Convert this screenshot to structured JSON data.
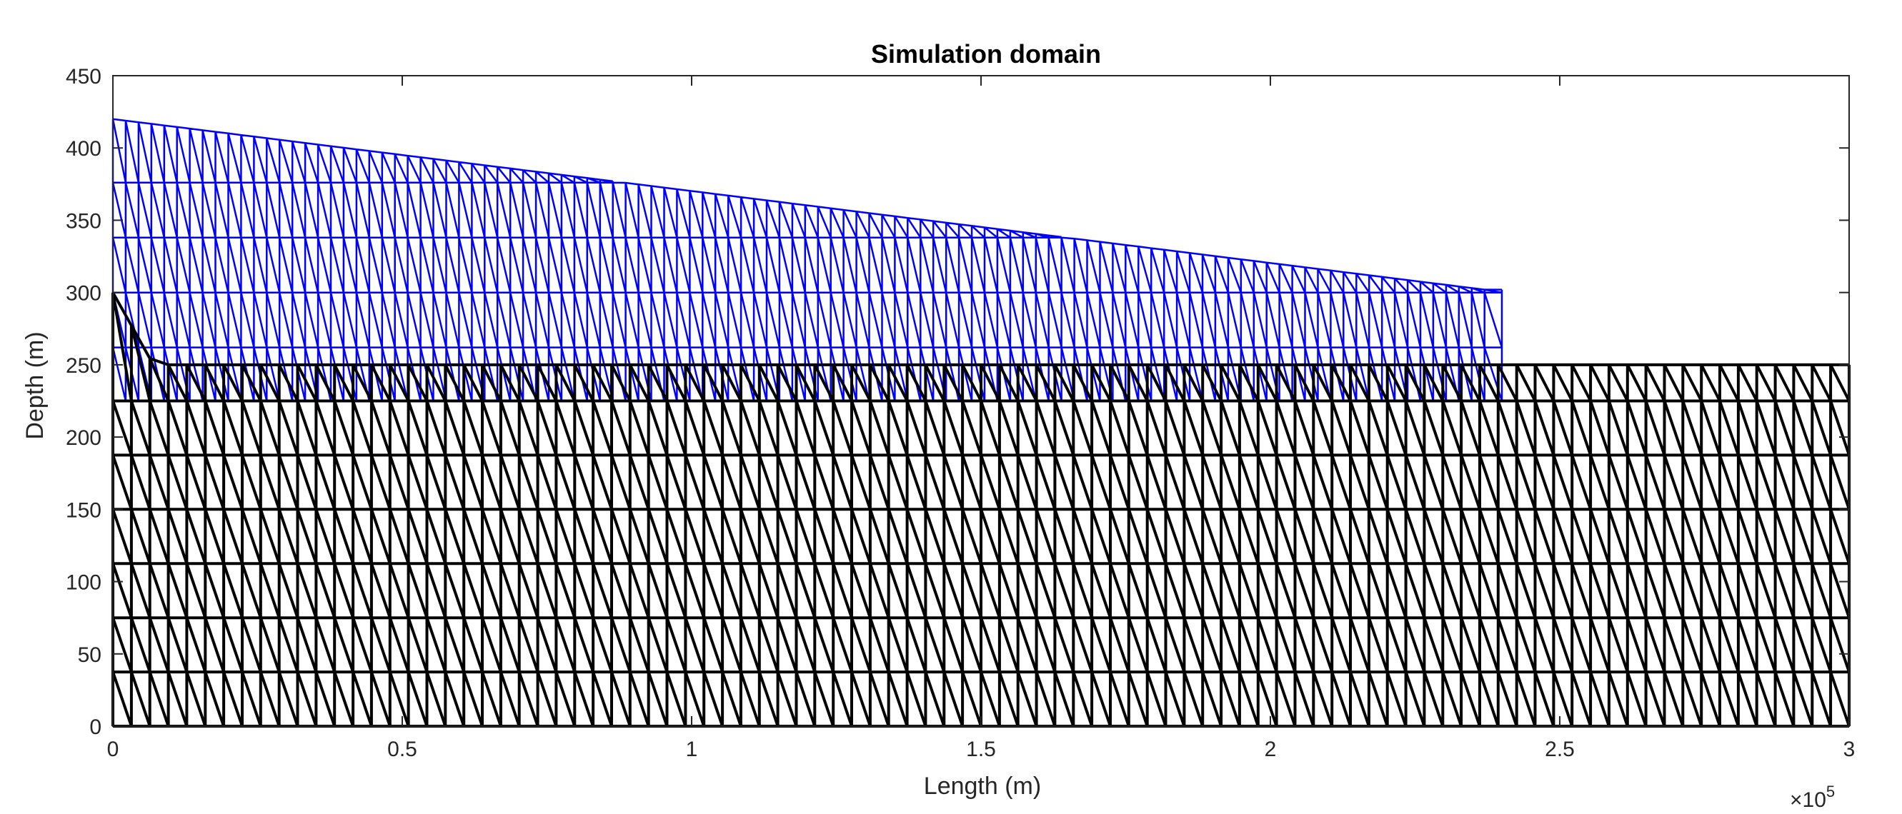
{
  "chart_data": {
    "type": "mesh",
    "title": "Simulation domain",
    "xlabel": "Length (m)",
    "ylabel": "Depth (m)",
    "x_exponent_base": "×10",
    "x_exponent_power": "5",
    "xlim": [
      0,
      300000
    ],
    "ylim": [
      0,
      450
    ],
    "x_ticks": [
      0,
      50000,
      100000,
      150000,
      200000,
      250000,
      300000
    ],
    "x_tick_labels": [
      "0",
      "0.5",
      "1",
      "1.5",
      "2",
      "2.5",
      "3"
    ],
    "y_ticks": [
      0,
      50,
      100,
      150,
      200,
      250,
      300,
      350,
      400,
      450
    ],
    "y_tick_labels": [
      "0",
      "50",
      "100",
      "150",
      "200",
      "250",
      "300",
      "350",
      "400",
      "450"
    ],
    "grid": false,
    "series": [
      {
        "color": "#0000ff",
        "mesh_x_range": [
          0,
          240000
        ],
        "top_surface": [
          [
            0,
            420
          ],
          [
            237000,
            302
          ]
        ],
        "bottom_surface": [
          [
            0,
            225
          ],
          [
            240000,
            225
          ]
        ],
        "layer_depths": [
          262,
          300,
          338,
          376
        ],
        "columns": 107
      },
      {
        "color": "#000000",
        "mesh_x_range": [
          0,
          300000
        ],
        "top_surface": [
          [
            0,
            300
          ],
          [
            7000,
            250
          ],
          [
            300000,
            250
          ]
        ],
        "bottom_surface": [
          [
            0,
            0
          ],
          [
            300000,
            0
          ]
        ],
        "layer_depths": [
          37.5,
          75,
          112.5,
          150,
          187.5,
          225
        ],
        "columns": 94
      }
    ]
  }
}
